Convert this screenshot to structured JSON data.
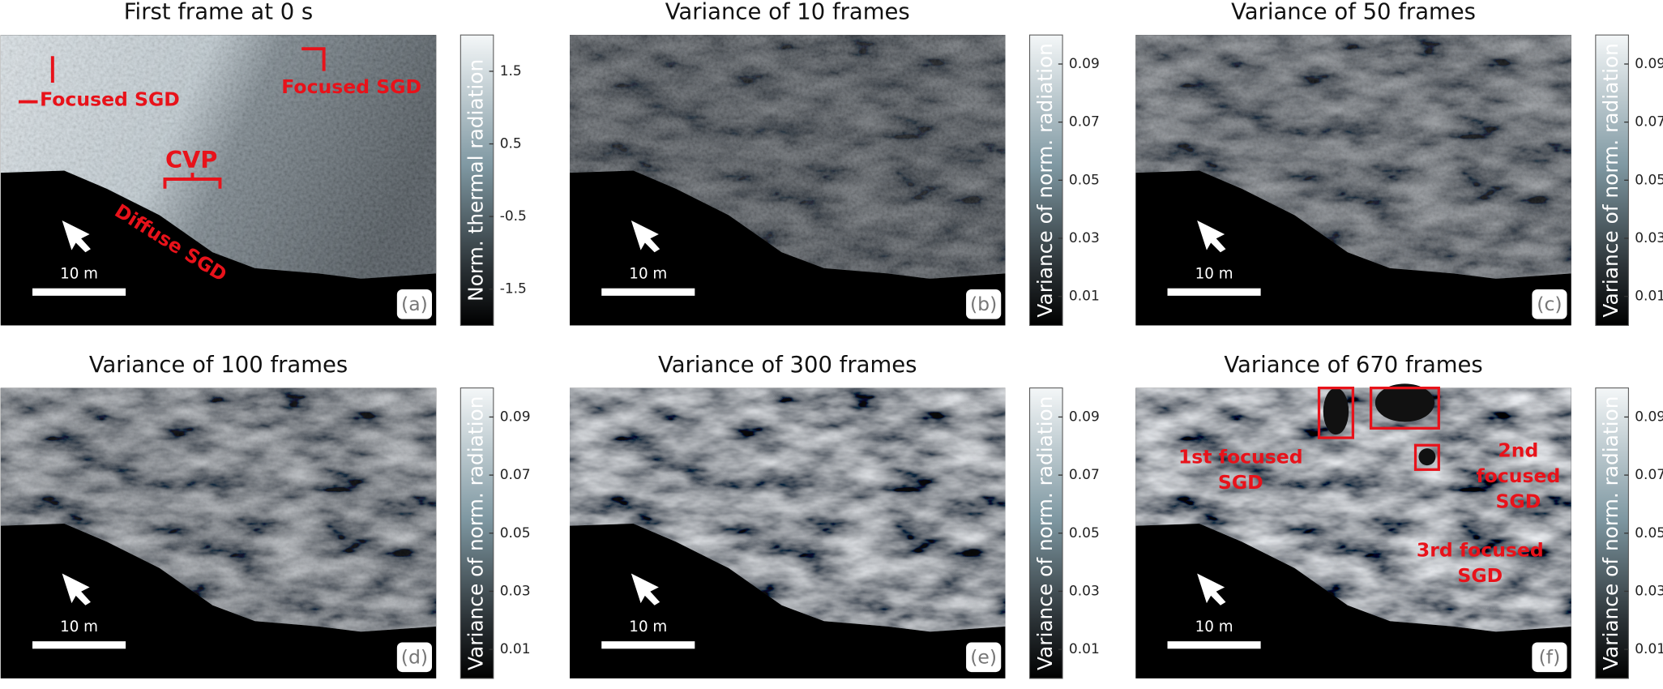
{
  "panels": [
    {
      "title": "First frame at 0 s",
      "label": "(a)",
      "scale_bar": "10 m",
      "colorbar": {
        "label": "Norm. thermal radiation",
        "lim": [
          -2,
          2
        ],
        "ticks": [
          1.5,
          0.5,
          -0.5,
          -1.5
        ]
      },
      "annotations": [
        {
          "lines": [
            "Focused SGD"
          ]
        },
        {
          "lines": [
            "Focused SGD"
          ]
        },
        {
          "lines": [
            "CVP"
          ]
        },
        {
          "lines": [
            "Diffuse SGD"
          ]
        }
      ]
    },
    {
      "title": "Variance of 10 frames",
      "label": "(b)",
      "scale_bar": "10 m",
      "colorbar": {
        "label": "Variance of norm. radiation",
        "lim": [
          0,
          0.1
        ],
        "ticks": [
          0.09,
          0.07,
          0.05,
          0.03,
          0.01
        ]
      },
      "annotations": []
    },
    {
      "title": "Variance of 50 frames",
      "label": "(c)",
      "scale_bar": "10 m",
      "colorbar": {
        "label": "Variance of norm. radiation",
        "lim": [
          0,
          0.1
        ],
        "ticks": [
          0.09,
          0.07,
          0.05,
          0.03,
          0.01
        ]
      },
      "annotations": []
    },
    {
      "title": "Variance of 100 frames",
      "label": "(d)",
      "scale_bar": "10 m",
      "colorbar": {
        "label": "Variance of norm. radiation",
        "lim": [
          0,
          0.1
        ],
        "ticks": [
          0.09,
          0.07,
          0.05,
          0.03,
          0.01
        ]
      },
      "annotations": []
    },
    {
      "title": "Variance of 300 frames",
      "label": "(e)",
      "scale_bar": "10 m",
      "colorbar": {
        "label": "Variance of norm. radiation",
        "lim": [
          0,
          0.1
        ],
        "ticks": [
          0.09,
          0.07,
          0.05,
          0.03,
          0.01
        ]
      },
      "annotations": []
    },
    {
      "title": "Variance of 670 frames",
      "label": "(f)",
      "scale_bar": "10 m",
      "colorbar": {
        "label": "Variance of norm. radiation",
        "lim": [
          0,
          0.1
        ],
        "ticks": [
          0.09,
          0.07,
          0.05,
          0.03,
          0.01
        ]
      },
      "annotations": [
        {
          "lines": [
            "1st focused",
            "SGD"
          ]
        },
        {
          "lines": [
            "2nd",
            "focused",
            "SGD"
          ]
        },
        {
          "lines": [
            "3rd focused",
            "SGD"
          ]
        }
      ]
    }
  ]
}
